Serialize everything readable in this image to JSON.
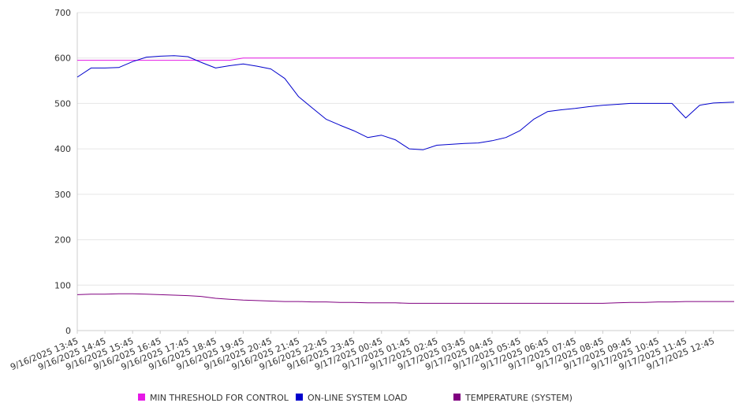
{
  "chart_data": {
    "type": "line",
    "title": "",
    "xlabel": "",
    "ylabel": "",
    "ylim": [
      0,
      700
    ],
    "yticks": [
      0,
      100,
      200,
      300,
      400,
      500,
      600,
      700
    ],
    "grid": true,
    "legend_position": "bottom",
    "x_tick_labels": [
      "9/16/2025 13:45",
      "9/16/2025 14:45",
      "9/16/2025 15:45",
      "9/16/2025 16:45",
      "9/16/2025 17:45",
      "9/16/2025 18:45",
      "9/16/2025 19:45",
      "9/16/2025 20:45",
      "9/16/2025 21:45",
      "9/16/2025 22:45",
      "9/16/2025 23:45",
      "9/17/2025 00:45",
      "9/17/2025 01:45",
      "9/17/2025 02:45",
      "9/17/2025 03:45",
      "9/17/2025 04:45",
      "9/17/2025 05:45",
      "9/17/2025 06:45",
      "9/17/2025 07:45",
      "9/17/2025 08:45",
      "9/17/2025 09:45",
      "9/17/2025 10:45",
      "9/17/2025 11:45",
      "9/17/2025 12:45"
    ],
    "x": [
      "9/16/2025 13:45",
      "9/16/2025 14:15",
      "9/16/2025 14:45",
      "9/16/2025 15:15",
      "9/16/2025 15:45",
      "9/16/2025 16:15",
      "9/16/2025 16:45",
      "9/16/2025 17:15",
      "9/16/2025 17:45",
      "9/16/2025 18:15",
      "9/16/2025 18:45",
      "9/16/2025 19:15",
      "9/16/2025 19:45",
      "9/16/2025 20:15",
      "9/16/2025 20:45",
      "9/16/2025 21:15",
      "9/16/2025 21:45",
      "9/16/2025 22:15",
      "9/16/2025 22:45",
      "9/16/2025 23:15",
      "9/16/2025 23:45",
      "9/17/2025 00:15",
      "9/17/2025 00:45",
      "9/17/2025 01:15",
      "9/17/2025 01:45",
      "9/17/2025 02:15",
      "9/17/2025 02:45",
      "9/17/2025 03:15",
      "9/17/2025 03:45",
      "9/17/2025 04:15",
      "9/17/2025 04:45",
      "9/17/2025 05:15",
      "9/17/2025 05:45",
      "9/17/2025 06:15",
      "9/17/2025 06:45",
      "9/17/2025 07:15",
      "9/17/2025 07:45",
      "9/17/2025 08:15",
      "9/17/2025 08:45",
      "9/17/2025 09:15",
      "9/17/2025 09:45",
      "9/17/2025 10:15",
      "9/17/2025 10:45",
      "9/17/2025 11:15",
      "9/17/2025 11:45",
      "9/17/2025 12:15",
      "9/17/2025 12:45",
      "9/17/2025 13:30"
    ],
    "series": [
      {
        "name": "MIN THRESHOLD FOR CONTROL",
        "color": "#e619e6",
        "values": [
          595,
          595,
          595,
          595,
          595,
          595,
          595,
          595,
          595,
          595,
          595,
          595,
          600,
          600,
          600,
          600,
          600,
          600,
          600,
          600,
          600,
          600,
          600,
          600,
          600,
          600,
          600,
          600,
          600,
          600,
          600,
          600,
          600,
          600,
          600,
          600,
          600,
          600,
          600,
          600,
          600,
          600,
          600,
          600,
          600,
          600,
          600,
          600
        ]
      },
      {
        "name": "ON-LINE SYSTEM LOAD",
        "color": "#0000cc",
        "values": [
          558,
          578,
          578,
          579,
          592,
          602,
          604,
          605,
          603,
          590,
          578,
          583,
          587,
          582,
          576,
          555,
          515,
          490,
          465,
          452,
          440,
          425,
          430,
          420,
          400,
          398,
          408,
          410,
          412,
          413,
          418,
          425,
          440,
          465,
          482,
          486,
          489,
          493,
          496,
          498,
          500,
          500,
          500,
          500,
          468,
          496,
          501,
          503
        ]
      },
      {
        "name": "TEMPERATURE (SYSTEM)",
        "color": "#800080",
        "values": [
          79,
          80,
          80,
          81,
          81,
          80,
          79,
          78,
          77,
          75,
          71,
          69,
          67,
          66,
          65,
          64,
          64,
          63,
          63,
          62,
          62,
          61,
          61,
          61,
          60,
          60,
          60,
          60,
          60,
          60,
          60,
          60,
          60,
          60,
          60,
          60,
          60,
          60,
          60,
          61,
          62,
          62,
          63,
          63,
          64,
          64,
          64,
          64
        ]
      }
    ]
  }
}
